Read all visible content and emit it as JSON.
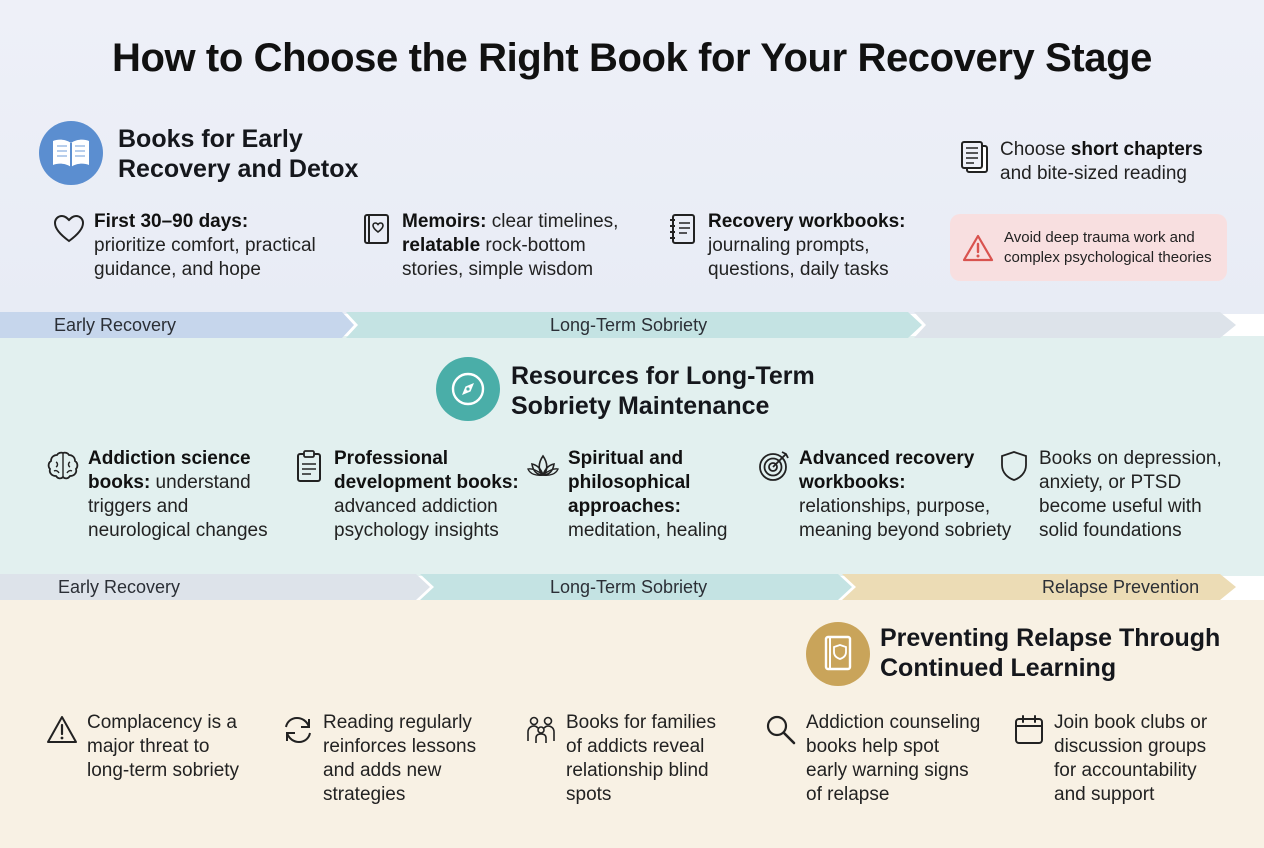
{
  "title": "How to Choose the Right Book for Your Recovery Stage",
  "colors": {
    "early_accent": "#5b8ed0",
    "long_accent": "#4aaea8",
    "relapse_accent": "#c9a45a",
    "warning_red": "#d9534f"
  },
  "early": {
    "heading_line1": "Books for Early",
    "heading_line2": "Recovery and Detox",
    "icon": "open-book-icon",
    "items": [
      {
        "icon": "heart-icon",
        "bold": "First 30–90 days:",
        "line1_rest": "",
        "line2": "prioritize comfort, practical",
        "line3": "guidance, and hope"
      },
      {
        "icon": "book-heart-icon",
        "bold": "Memoirs:",
        "line1_rest": " clear timelines,",
        "line2_bold": "relatable",
        "line2_rest": " rock-bottom",
        "line3": "stories, simple wisdom"
      },
      {
        "icon": "notebook-icon",
        "bold": "Recovery workbooks:",
        "line2": "journaling prompts,",
        "line3": "questions, daily tasks"
      }
    ],
    "tip": {
      "icon": "pages-icon",
      "pre": "Choose ",
      "bold": "short chapters",
      "line2": "and bite-sized reading"
    },
    "warning": {
      "icon": "warning-icon",
      "line1": "Avoid deep trauma work and",
      "line2": "complex psychological theories"
    }
  },
  "timeline1": {
    "labels": [
      "Early Recovery",
      "Long-Term Sobriety"
    ]
  },
  "long": {
    "heading_line1": "Resources for Long-Term",
    "heading_line2": "Sobriety Maintenance",
    "icon": "compass-icon",
    "items": [
      {
        "icon": "brain-icon",
        "bold1": "Addiction science",
        "bold2": "books:",
        "rest2": " understand",
        "line3": "triggers and",
        "line4": "neurological changes"
      },
      {
        "icon": "clipboard-icon",
        "bold1": "Professional",
        "bold2": "development books:",
        "rest2": "",
        "line3": "advanced addiction",
        "line4": "psychology insights"
      },
      {
        "icon": "lotus-icon",
        "bold1": "Spiritual and",
        "bold2": "philosophical",
        "bold3": "approaches:",
        "line4": "meditation, healing"
      },
      {
        "icon": "target-icon",
        "bold1": "Advanced recovery",
        "bold2": "workbooks:",
        "line3": "relationships, purpose,",
        "line4": "meaning beyond sobriety"
      },
      {
        "icon": "shield-icon",
        "line1": "Books on depression,",
        "line2": "anxiety, or PTSD",
        "line3": "become useful with",
        "line4": "solid foundations"
      }
    ]
  },
  "timeline2": {
    "labels": [
      "Early Recovery",
      "Long-Term Sobriety",
      "Relapse Prevention"
    ]
  },
  "relapse": {
    "heading_line1": "Preventing Relapse Through",
    "heading_line2": "Continued Learning",
    "icon": "shield-book-icon",
    "items": [
      {
        "icon": "alert-icon",
        "line1": "Complacency is a",
        "line2": "major threat to",
        "line3": "long-term sobriety"
      },
      {
        "icon": "refresh-icon",
        "line1": "Reading regularly",
        "line2": "reinforces lessons",
        "line3": "and adds new",
        "line4": "strategies"
      },
      {
        "icon": "family-icon",
        "line1": "Books for families",
        "line2": "of addicts reveal",
        "line3": "relationship blind",
        "line4": "spots"
      },
      {
        "icon": "magnifier-icon",
        "line1": "Addiction counseling",
        "line2": "books help spot",
        "line3": "early warning signs",
        "line4": "of relapse"
      },
      {
        "icon": "calendar-icon",
        "line1": "Join book clubs or",
        "line2": "discussion groups",
        "line3": "for accountability",
        "line4": "and support"
      }
    ]
  }
}
